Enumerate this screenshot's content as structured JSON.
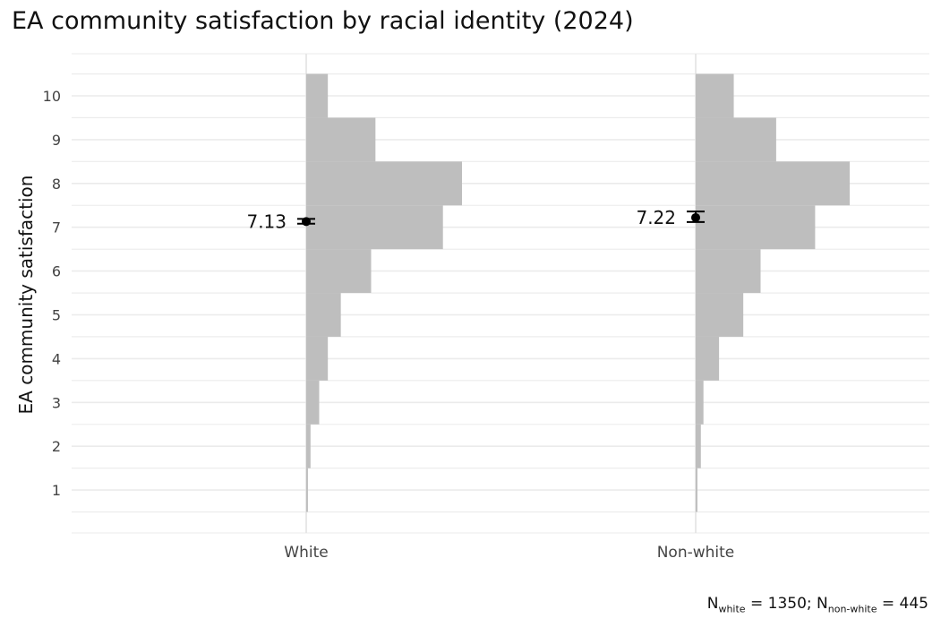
{
  "chart_data": {
    "type": "histogram",
    "title": "EA community satisfaction by racial identity (2024)",
    "xlabel": "",
    "ylabel": "EA community satisfaction",
    "ylim": [
      0.5,
      10.5
    ],
    "yticks": [
      1,
      2,
      3,
      4,
      5,
      6,
      7,
      8,
      9,
      10
    ],
    "categories": [
      "White",
      "Non-white"
    ],
    "bins": [
      1,
      2,
      3,
      4,
      5,
      6,
      7,
      8,
      9,
      10
    ],
    "series": [
      {
        "name": "White",
        "proportions": [
          0.002,
          0.005,
          0.015,
          0.025,
          0.04,
          0.075,
          0.158,
          0.18,
          0.08,
          0.025
        ],
        "mean": 7.13,
        "mean_label": "7.13",
        "ci": [
          7.08,
          7.19
        ]
      },
      {
        "name": "Non-white",
        "proportions": [
          0.002,
          0.006,
          0.009,
          0.027,
          0.055,
          0.075,
          0.138,
          0.178,
          0.093,
          0.044
        ],
        "mean": 7.22,
        "mean_label": "7.22",
        "ci": [
          7.12,
          7.36
        ]
      }
    ],
    "bar_color": "#bebebe",
    "point_color": "#000000",
    "grid": true
  },
  "caption": {
    "n_label": "N",
    "sub_white": "white",
    "n_white_text": " = 1350; ",
    "sub_nonwhite": "non-white",
    "n_nonwhite_text": " = 445"
  }
}
